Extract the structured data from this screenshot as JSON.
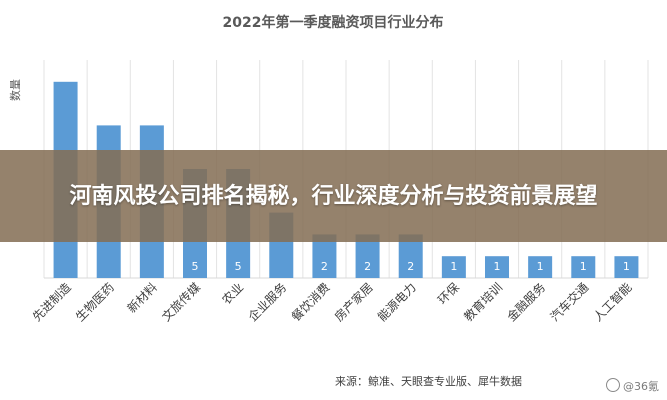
{
  "chart_data": {
    "type": "bar",
    "title": "2022年第一季度融资项目行业分布",
    "ylabel": "数量",
    "xlabel": "",
    "categories": [
      "先进制造",
      "生物医药",
      "新材料",
      "文旅传媒",
      "农业",
      "企业服务",
      "餐饮消费",
      "房产家居",
      "能源电力",
      "环保",
      "教育培训",
      "金融服务",
      "汽车交通",
      "人工智能"
    ],
    "values": [
      9,
      7,
      7,
      5,
      5,
      3,
      2,
      2,
      2,
      1,
      1,
      1,
      1,
      1
    ],
    "data_labels": [
      "",
      "",
      "",
      "5",
      "5",
      "",
      "2",
      "2",
      "2",
      "1",
      "1",
      "1",
      "1",
      "1"
    ],
    "ylim": [
      0,
      10
    ],
    "grid": "vertical",
    "bar_color": "#5b9bd5",
    "source": "来源：鲸准、天眼查专业版、犀牛数据"
  },
  "banner": {
    "title": "河南风投公司排名揭秘，行业深度分析与投资前景展望"
  },
  "watermark": {
    "text": "@36氪"
  }
}
